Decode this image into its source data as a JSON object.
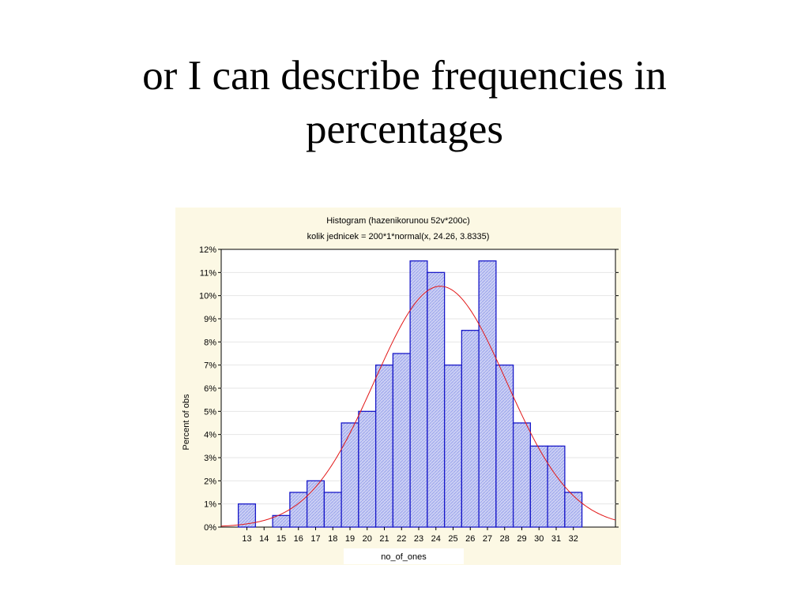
{
  "slide": {
    "title_line1": "or I can describe frequencies in",
    "title_line2": "percentages"
  },
  "colors": {
    "panel_bg": "#fcf8e4",
    "bar_fill": "#ccd0f4",
    "bar_hatch": "#9aa4ec",
    "bar_stroke": "#1818c8",
    "curve": "#e21818"
  },
  "chart_data": {
    "type": "bar",
    "title": "Histogram (hazenikorunou 52v*200c)",
    "subtitle": "kolik jednicek = 200*1*normal(x, 24.26, 3.8335)",
    "xlabel": "no_of_ones",
    "ylabel": "Percent of obs",
    "categories": [
      "13",
      "14",
      "15",
      "16",
      "17",
      "18",
      "19",
      "20",
      "21",
      "22",
      "23",
      "24",
      "25",
      "26",
      "27",
      "28",
      "29",
      "30",
      "31",
      "32"
    ],
    "values": [
      1,
      0,
      0.5,
      1.5,
      2,
      1.5,
      4.5,
      5,
      7,
      7.5,
      11.5,
      11,
      7,
      8.5,
      11.5,
      7,
      4.5,
      3.5,
      3.5,
      1.5
    ],
    "ylim": [
      0,
      12
    ],
    "yticks": [
      "0%",
      "1%",
      "2%",
      "3%",
      "4%",
      "5%",
      "6%",
      "7%",
      "8%",
      "9%",
      "10%",
      "11%",
      "12%"
    ],
    "fit": {
      "name": "normal",
      "mean": 24.26,
      "sd": 3.8335,
      "n": 200
    },
    "grid": true,
    "legend": "none"
  }
}
